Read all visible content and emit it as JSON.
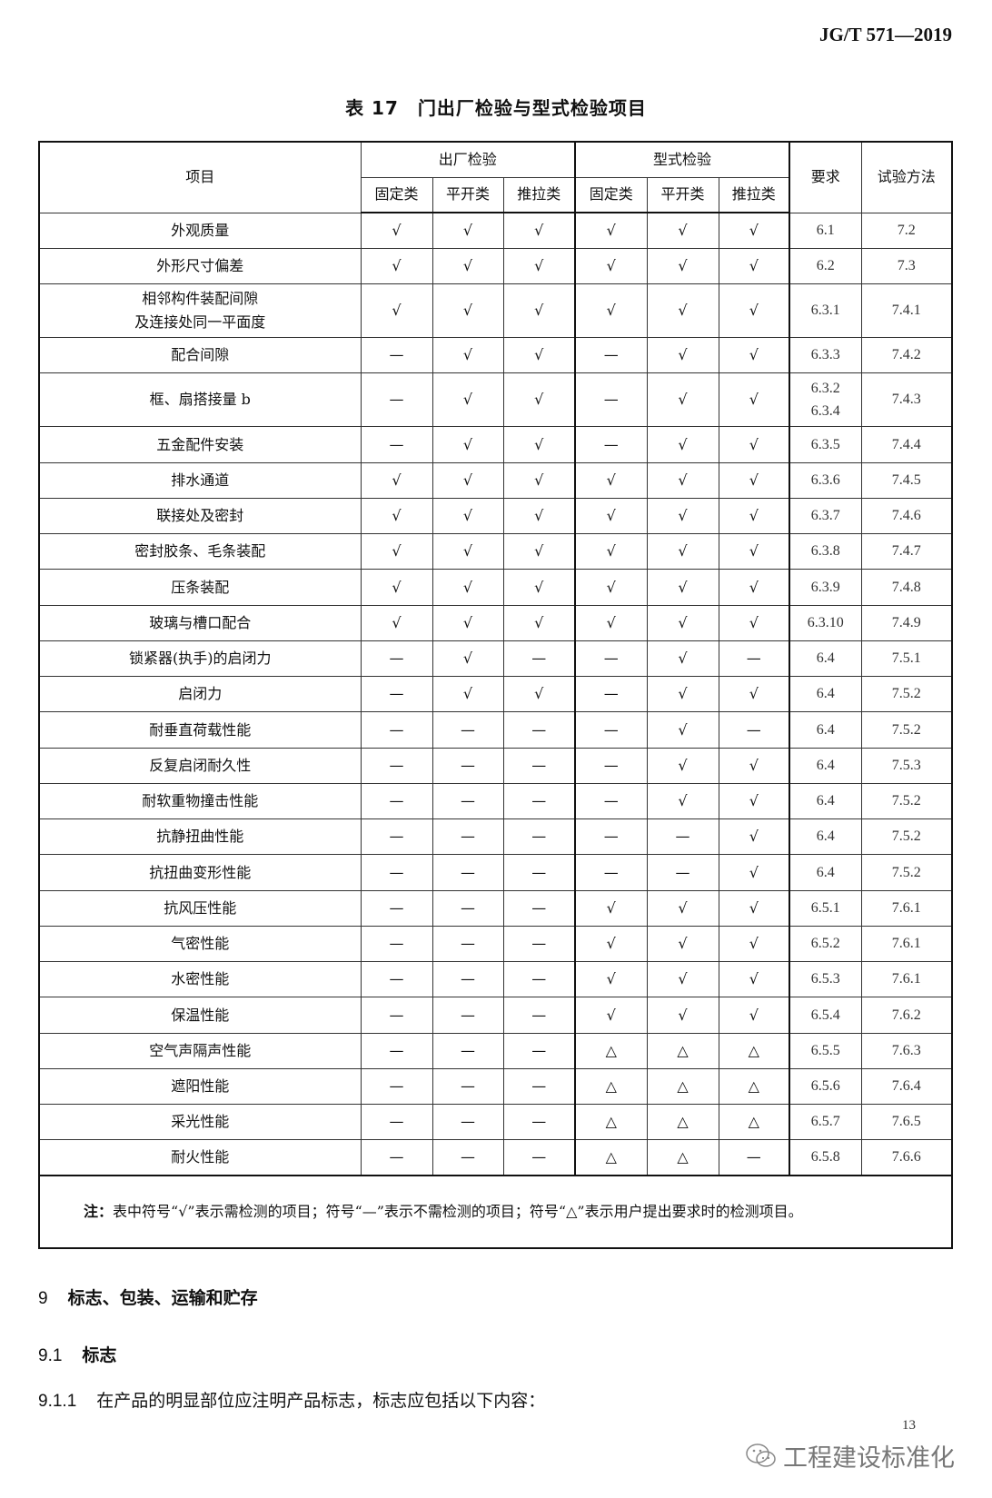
{
  "header": {
    "standard_code": "JG/T 571—2019"
  },
  "table": {
    "title": "表 17　门出厂检验与型式检验项目",
    "col_item": "项目",
    "group_factory": "出厂检验",
    "group_type": "型式检验",
    "col_requirement": "要求",
    "col_method": "试验方法",
    "sub_cols": [
      "固定类",
      "平开类",
      "推拉类",
      "固定类",
      "平开类",
      "推拉类"
    ],
    "rows": [
      {
        "item": "外观质量",
        "marks": [
          "√",
          "√",
          "√",
          "√",
          "√",
          "√"
        ],
        "req": "6.1",
        "method": "7.2"
      },
      {
        "item": "外形尺寸偏差",
        "marks": [
          "√",
          "√",
          "√",
          "√",
          "√",
          "√"
        ],
        "req": "6.2",
        "method": "7.3"
      },
      {
        "item": "相邻构件装配间隙\n及连接处同一平面度",
        "marks": [
          "√",
          "√",
          "√",
          "√",
          "√",
          "√"
        ],
        "req": "6.3.1",
        "method": "7.4.1",
        "tall": true
      },
      {
        "item": "配合间隙",
        "marks": [
          "—",
          "√",
          "√",
          "—",
          "√",
          "√"
        ],
        "req": "6.3.3",
        "method": "7.4.2"
      },
      {
        "item": "框、扇搭接量 b",
        "marks": [
          "—",
          "√",
          "√",
          "—",
          "√",
          "√"
        ],
        "req": "6.3.2\n6.3.4",
        "method": "7.4.3",
        "tall": true
      },
      {
        "item": "五金配件安装",
        "marks": [
          "—",
          "√",
          "√",
          "—",
          "√",
          "√"
        ],
        "req": "6.3.5",
        "method": "7.4.4"
      },
      {
        "item": "排水通道",
        "marks": [
          "√",
          "√",
          "√",
          "√",
          "√",
          "√"
        ],
        "req": "6.3.6",
        "method": "7.4.5"
      },
      {
        "item": "联接处及密封",
        "marks": [
          "√",
          "√",
          "√",
          "√",
          "√",
          "√"
        ],
        "req": "6.3.7",
        "method": "7.4.6"
      },
      {
        "item": "密封胶条、毛条装配",
        "marks": [
          "√",
          "√",
          "√",
          "√",
          "√",
          "√"
        ],
        "req": "6.3.8",
        "method": "7.4.7"
      },
      {
        "item": "压条装配",
        "marks": [
          "√",
          "√",
          "√",
          "√",
          "√",
          "√"
        ],
        "req": "6.3.9",
        "method": "7.4.8"
      },
      {
        "item": "玻璃与槽口配合",
        "marks": [
          "√",
          "√",
          "√",
          "√",
          "√",
          "√"
        ],
        "req": "6.3.10",
        "method": "7.4.9"
      },
      {
        "item": "锁紧器(执手)的启闭力",
        "marks": [
          "—",
          "√",
          "—",
          "—",
          "√",
          "—"
        ],
        "req": "6.4",
        "method": "7.5.1"
      },
      {
        "item": "启闭力",
        "marks": [
          "—",
          "√",
          "√",
          "—",
          "√",
          "√"
        ],
        "req": "6.4",
        "method": "7.5.2"
      },
      {
        "item": "耐垂直荷载性能",
        "marks": [
          "—",
          "—",
          "—",
          "—",
          "√",
          "—"
        ],
        "req": "6.4",
        "method": "7.5.2"
      },
      {
        "item": "反复启闭耐久性",
        "marks": [
          "—",
          "—",
          "—",
          "—",
          "√",
          "√"
        ],
        "req": "6.4",
        "method": "7.5.3"
      },
      {
        "item": "耐软重物撞击性能",
        "marks": [
          "—",
          "—",
          "—",
          "—",
          "√",
          "√"
        ],
        "req": "6.4",
        "method": "7.5.2"
      },
      {
        "item": "抗静扭曲性能",
        "marks": [
          "—",
          "—",
          "—",
          "—",
          "—",
          "√"
        ],
        "req": "6.4",
        "method": "7.5.2"
      },
      {
        "item": "抗扭曲变形性能",
        "marks": [
          "—",
          "—",
          "—",
          "—",
          "—",
          "√"
        ],
        "req": "6.4",
        "method": "7.5.2"
      },
      {
        "item": "抗风压性能",
        "marks": [
          "—",
          "—",
          "—",
          "√",
          "√",
          "√"
        ],
        "req": "6.5.1",
        "method": "7.6.1"
      },
      {
        "item": "气密性能",
        "marks": [
          "—",
          "—",
          "—",
          "√",
          "√",
          "√"
        ],
        "req": "6.5.2",
        "method": "7.6.1"
      },
      {
        "item": "水密性能",
        "marks": [
          "—",
          "—",
          "—",
          "√",
          "√",
          "√"
        ],
        "req": "6.5.3",
        "method": "7.6.1"
      },
      {
        "item": "保温性能",
        "marks": [
          "—",
          "—",
          "—",
          "√",
          "√",
          "√"
        ],
        "req": "6.5.4",
        "method": "7.6.2"
      },
      {
        "item": "空气声隔声性能",
        "marks": [
          "—",
          "—",
          "—",
          "△",
          "△",
          "△"
        ],
        "req": "6.5.5",
        "method": "7.6.3"
      },
      {
        "item": "遮阳性能",
        "marks": [
          "—",
          "—",
          "—",
          "△",
          "△",
          "△"
        ],
        "req": "6.5.6",
        "method": "7.6.4"
      },
      {
        "item": "采光性能",
        "marks": [
          "—",
          "—",
          "—",
          "△",
          "△",
          "△"
        ],
        "req": "6.5.7",
        "method": "7.6.5"
      },
      {
        "item": "耐火性能",
        "marks": [
          "—",
          "—",
          "—",
          "△",
          "△",
          "—"
        ],
        "req": "6.5.8",
        "method": "7.6.6"
      }
    ],
    "note_label": "注：",
    "note_text": "表中符号“√”表示需检测的项目；符号“—”表示不需检测的项目；符号“△”表示用户提出要求时的检测项目。"
  },
  "section9": {
    "number": "9",
    "title": "标志、包装、运输和贮存"
  },
  "section91": {
    "number": "9.1",
    "title": "标志"
  },
  "clause911": {
    "number": "9.1.1",
    "text": "在产品的明显部位应注明产品标志，标志应包括以下内容："
  },
  "footer": {
    "page_number": "13",
    "watermark": "工程建设标准化",
    "watermark_icon": "wechat-icon"
  }
}
